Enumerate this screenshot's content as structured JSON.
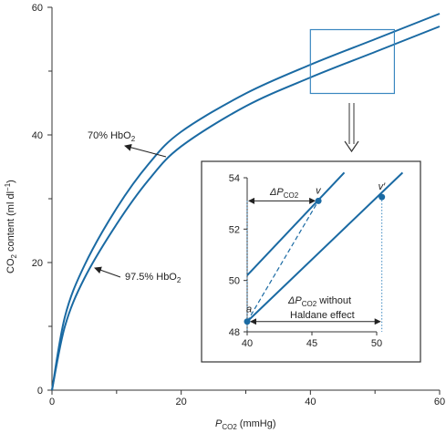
{
  "chart_data": [
    {
      "type": "line",
      "xlabel": "P",
      "xlabel_sub": "CO2",
      "xlabel_unit": "(mmHg)",
      "ylabel_parts": [
        "CO",
        "2",
        " content (ml dl",
        "−1",
        ")"
      ],
      "xlim": [
        0,
        60
      ],
      "ylim": [
        0,
        60
      ],
      "xticks": [
        0,
        20,
        40,
        60
      ],
      "yticks": [
        0,
        20,
        40,
        60
      ],
      "xtick_labels": [
        "0",
        "20",
        "40",
        "60"
      ],
      "ytick_labels": [
        "0",
        "20",
        "40",
        "60"
      ],
      "series": [
        {
          "name": "70% HbO2",
          "label_parts": [
            "70% HbO",
            "2"
          ],
          "x": [
            0,
            2,
            5,
            10,
            15,
            20,
            30,
            40,
            50,
            60
          ],
          "y": [
            0,
            11.5,
            19.5,
            28.5,
            35.5,
            40.5,
            46.5,
            51,
            55,
            59
          ]
        },
        {
          "name": "97.5% HbO2",
          "label_parts": [
            "97.5% HbO",
            "2"
          ],
          "x": [
            0,
            2,
            5,
            10,
            15,
            20,
            30,
            40,
            50,
            60
          ],
          "y": [
            0,
            10,
            17.5,
            26,
            33,
            38.2,
            44.5,
            49,
            53,
            57
          ]
        }
      ],
      "highlight_box": {
        "x": [
          40,
          53
        ],
        "y": [
          46.5,
          56.5
        ]
      },
      "color": "#1a6aa3"
    },
    {
      "type": "line",
      "xlim": [
        40,
        50
      ],
      "ylim": [
        48,
        54
      ],
      "xticks": [
        40,
        45,
        50
      ],
      "yticks": [
        48,
        50,
        52,
        54
      ],
      "xtick_labels": [
        "40",
        "45",
        "50"
      ],
      "ytick_labels": [
        "48",
        "50",
        "52",
        "54"
      ],
      "series": [
        {
          "x": [
            40,
            47.5
          ],
          "y": [
            50.2,
            54.2
          ]
        },
        {
          "x": [
            40,
            52
          ],
          "y": [
            48.4,
            54.2
          ]
        }
      ],
      "points": [
        {
          "label": "a",
          "x": 40,
          "y": 48.4
        },
        {
          "label": "v",
          "x": 45.5,
          "y": 53.1
        },
        {
          "label": "v′",
          "x": 50.4,
          "y": 53.25
        }
      ],
      "annotations": {
        "delta_pco2": [
          "ΔP",
          "CO2"
        ],
        "delta_without": [
          "ΔP",
          "CO2",
          " without"
        ],
        "haldane": "Haldane effect"
      },
      "color": "#1a6aa3"
    }
  ]
}
